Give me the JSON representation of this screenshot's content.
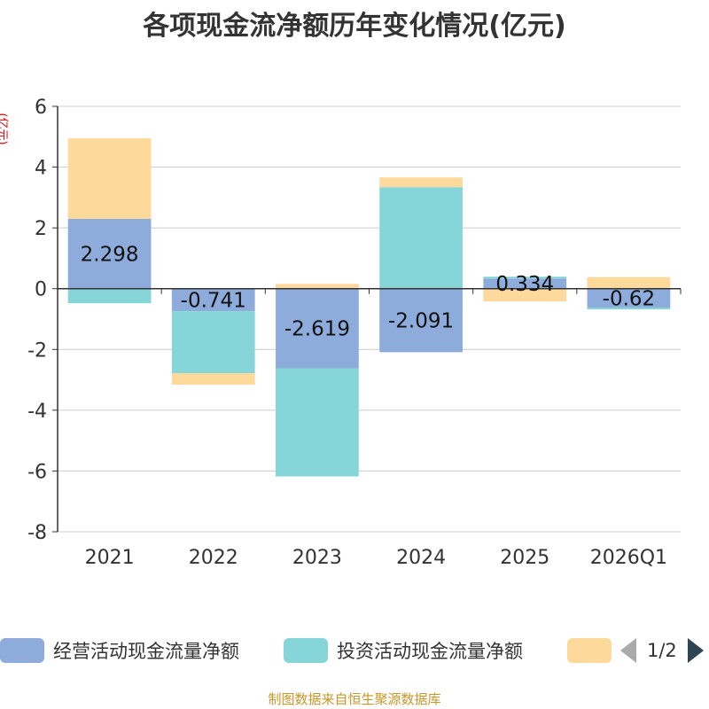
{
  "chart_data": {
    "type": "bar",
    "stacked": true,
    "title": "各项现金流净额历年变化情况(亿元)",
    "ylabel": "(亿元)",
    "ylim": [
      -8,
      6
    ],
    "yticks": [
      6,
      4,
      2,
      0,
      -2,
      -4,
      -6,
      -8
    ],
    "categories": [
      "2021",
      "2022",
      "2023",
      "2024",
      "2025",
      "2026Q1"
    ],
    "series": [
      {
        "name": "经营活动现金流量净额",
        "color": "#8eacdb",
        "values": [
          2.298,
          -0.741,
          -2.619,
          -2.091,
          0.334,
          -0.62
        ]
      },
      {
        "name": "投资活动现金流量净额",
        "color": "#85d5d9",
        "values": [
          -0.48,
          -2.04,
          -3.56,
          3.34,
          0.06,
          -0.06
        ]
      },
      {
        "name": "",
        "color": "#fdd99b",
        "values": [
          2.65,
          -0.38,
          0.16,
          0.32,
          -0.42,
          0.38
        ]
      }
    ],
    "data_labels": [
      "2.298",
      "-0.741",
      "-2.619",
      "-2.091",
      "0.334",
      "-0.62"
    ],
    "legend_position": "bottom"
  },
  "legend": {
    "page": "1/2"
  },
  "footer": {
    "source": "制图数据来自恒生聚源数据库"
  }
}
